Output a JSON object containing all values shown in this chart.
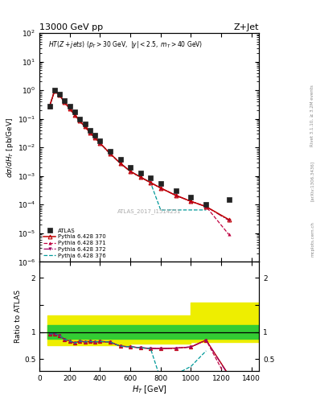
{
  "title_left": "13000 GeV pp",
  "title_right": "Z+Jet",
  "right_label1": "Rivet 3.1.10, ≥ 3.2M events",
  "right_label2": "[arXiv:1306.3436]",
  "right_label3": "mcplots.cern.ch",
  "atlas_label": "ATLAS_2017_I1514251",
  "ylabel_main": "dσ/dH_T [pb/GeV]",
  "ylabel_ratio": "Ratio to ATLAS",
  "xlabel": "H_T [GeV]",
  "ylim_main": [
    1e-06,
    100
  ],
  "ylim_ratio": [
    0.28,
    2.3
  ],
  "xlim": [
    0,
    1450
  ],
  "atlas_x": [
    66,
    100,
    133,
    166,
    200,
    233,
    266,
    300,
    333,
    366,
    400,
    466,
    533,
    600,
    666,
    733,
    800,
    900,
    1000,
    1100,
    1250
  ],
  "atlas_y": [
    0.28,
    1.0,
    0.72,
    0.43,
    0.27,
    0.17,
    0.1,
    0.065,
    0.04,
    0.027,
    0.017,
    0.0075,
    0.0038,
    0.002,
    0.0013,
    0.00085,
    0.00055,
    0.0003,
    0.00018,
    0.0001,
    0.00015
  ],
  "p370_x": [
    66,
    100,
    133,
    166,
    200,
    233,
    266,
    300,
    333,
    366,
    400,
    466,
    533,
    600,
    666,
    733,
    800,
    900,
    1000,
    1100,
    1250
  ],
  "p370_y": [
    0.27,
    0.97,
    0.67,
    0.37,
    0.225,
    0.135,
    0.083,
    0.053,
    0.033,
    0.022,
    0.014,
    0.0061,
    0.0028,
    0.00145,
    0.00092,
    0.00059,
    0.00038,
    0.00021,
    0.00013,
    8.5e-05,
    3e-05
  ],
  "p371_x": [
    66,
    100,
    133,
    166,
    200,
    233,
    266,
    300,
    333,
    366,
    400,
    466,
    533,
    600,
    666,
    733,
    800,
    900,
    1000,
    1100,
    1250
  ],
  "p371_y": [
    0.27,
    0.97,
    0.67,
    0.37,
    0.225,
    0.135,
    0.083,
    0.053,
    0.033,
    0.022,
    0.014,
    0.0061,
    0.0028,
    0.00145,
    0.00092,
    0.00059,
    0.00038,
    0.00021,
    0.00013,
    8.5e-05,
    9e-06
  ],
  "p372_x": [
    66,
    100,
    133,
    166,
    200,
    233,
    266,
    300,
    333,
    366,
    400,
    466,
    533,
    600,
    666,
    733,
    800,
    900,
    1000,
    1100,
    1250
  ],
  "p372_y": [
    0.27,
    0.97,
    0.67,
    0.37,
    0.225,
    0.135,
    0.083,
    0.053,
    0.033,
    0.022,
    0.014,
    0.0061,
    0.0028,
    0.00145,
    0.00092,
    0.00059,
    0.00038,
    0.00021,
    0.00013,
    8.5e-05,
    2.8e-05
  ],
  "p376_x": [
    66,
    100,
    133,
    166,
    200,
    233,
    266,
    300,
    333,
    366,
    400,
    466,
    533,
    600,
    666,
    733,
    800,
    900,
    1000,
    1100
  ],
  "p376_y": [
    0.27,
    0.97,
    0.67,
    0.37,
    0.225,
    0.135,
    0.083,
    0.053,
    0.033,
    0.022,
    0.014,
    0.0061,
    0.0028,
    0.00145,
    0.00092,
    0.00059,
    6.5e-05,
    6.5e-05,
    6.5e-05,
    6.5e-05
  ],
  "band_x": [
    50,
    100,
    200,
    400,
    600,
    1000,
    1450
  ],
  "band_green_up": [
    1.13,
    1.13,
    1.13,
    1.13,
    1.13,
    1.13,
    1.13
  ],
  "band_green_dn": [
    0.88,
    0.88,
    0.88,
    0.88,
    0.88,
    0.88,
    0.88
  ],
  "band_yellow_up": [
    1.3,
    1.3,
    1.3,
    1.3,
    1.3,
    1.55,
    1.55
  ],
  "band_yellow_dn": [
    0.75,
    0.75,
    0.75,
    0.75,
    0.78,
    0.82,
    0.82
  ],
  "color_atlas": "#222222",
  "color_p370": "#c00000",
  "color_p371": "#c00040",
  "color_p372": "#a00060",
  "color_p376": "#009999",
  "color_green": "#33cc33",
  "color_yellow": "#eeee00",
  "legend_labels": [
    "ATLAS",
    "Pythia 6.428 370",
    "Pythia 6.428 371",
    "Pythia 6.428 372",
    "Pythia 6.428 376"
  ]
}
